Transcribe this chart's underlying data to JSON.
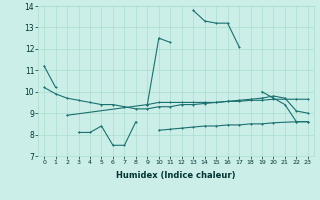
{
  "xlabel": "Humidex (Indice chaleur)",
  "bg_color": "#cceee8",
  "grid_color": "#aaddcc",
  "line_color": "#1a7070",
  "xlim": [
    -0.5,
    23.5
  ],
  "ylim": [
    7,
    14
  ],
  "xticks": [
    0,
    1,
    2,
    3,
    4,
    5,
    6,
    7,
    8,
    9,
    10,
    11,
    12,
    13,
    14,
    15,
    16,
    17,
    18,
    19,
    20,
    21,
    22,
    23
  ],
  "yticks": [
    7,
    8,
    9,
    10,
    11,
    12,
    13,
    14
  ],
  "line1": {
    "x": [
      0,
      1,
      2,
      3,
      4,
      5,
      6,
      7,
      8,
      9,
      10,
      11,
      12,
      13,
      14,
      15,
      16,
      17,
      18,
      19,
      20,
      21,
      22,
      23
    ],
    "y": [
      11.2,
      10.2,
      null,
      null,
      null,
      null,
      null,
      null,
      null,
      9.4,
      12.5,
      12.3,
      null,
      13.8,
      13.3,
      13.2,
      13.2,
      12.1,
      null,
      10.0,
      9.7,
      9.4,
      8.6,
      8.6
    ]
  },
  "line2": {
    "x": [
      0,
      1,
      2,
      3,
      4,
      5,
      6,
      7,
      8,
      9,
      10,
      11,
      12,
      13,
      14,
      15,
      16,
      17,
      18,
      19,
      20,
      21,
      22,
      23
    ],
    "y": [
      10.2,
      9.9,
      9.7,
      9.6,
      9.5,
      9.4,
      9.4,
      9.3,
      9.2,
      9.2,
      9.3,
      9.3,
      9.4,
      9.4,
      9.45,
      9.5,
      9.55,
      9.6,
      9.65,
      9.7,
      9.8,
      9.7,
      9.1,
      9.0
    ]
  },
  "line3": {
    "x": [
      2,
      9,
      10,
      11,
      12,
      13,
      14,
      15,
      16,
      17,
      18,
      19,
      20,
      22,
      23
    ],
    "y": [
      8.9,
      9.4,
      9.5,
      9.5,
      9.5,
      9.5,
      9.5,
      9.5,
      9.55,
      9.55,
      9.6,
      9.6,
      9.65,
      9.65,
      9.65
    ]
  },
  "line4": {
    "x": [
      3,
      4,
      5,
      6,
      7,
      8,
      9,
      10,
      11,
      12,
      13,
      14,
      15,
      16,
      17,
      18,
      19,
      20,
      22,
      23
    ],
    "y": [
      8.1,
      8.1,
      8.4,
      7.5,
      7.5,
      8.6,
      null,
      8.2,
      8.25,
      8.3,
      8.35,
      8.4,
      8.4,
      8.45,
      8.45,
      8.5,
      8.5,
      8.55,
      8.6,
      8.6
    ]
  }
}
